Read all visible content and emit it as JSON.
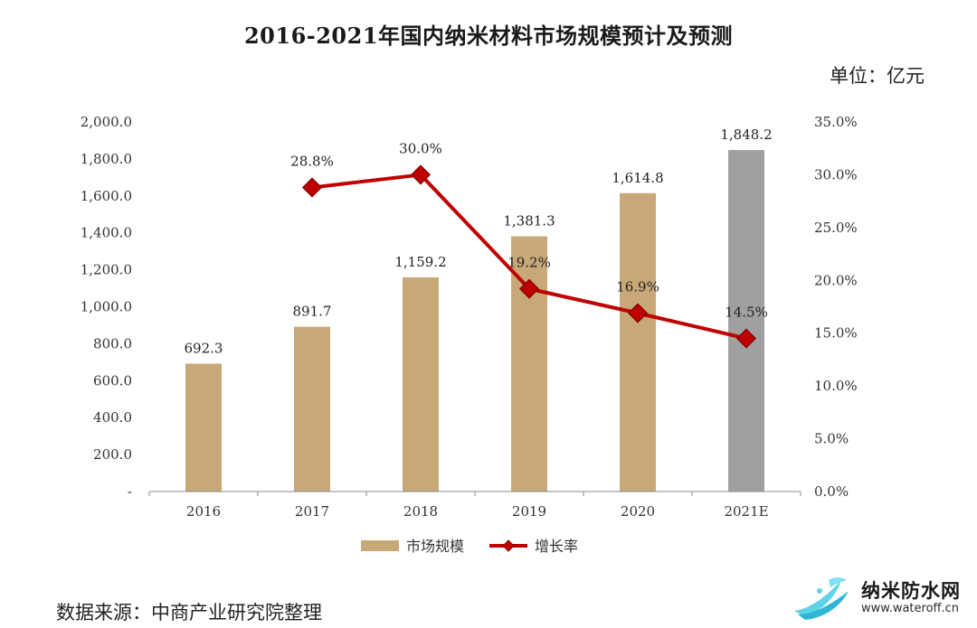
{
  "title": "2016-2021年国内纳米材料市场规模预计及预测",
  "unit_label": "单位：亿元",
  "source": "数据来源：中商产业研究院整理",
  "logo": {
    "name": "纳米防水网",
    "url": "www.wateroff.cn",
    "icon": "water-splash-icon"
  },
  "colors": {
    "bar": "#c8a878",
    "bar_forecast": "#a0a0a0",
    "line": "#c00000",
    "marker": "#c00000"
  },
  "chart_data": {
    "type": "bar",
    "categories": [
      "2016",
      "2017",
      "2018",
      "2019",
      "2020",
      "2021E"
    ],
    "series": [
      {
        "name": "市场规模",
        "type": "bar",
        "axis": "left",
        "values": [
          692.3,
          891.7,
          1159.2,
          1381.3,
          1614.8,
          1848.2
        ],
        "labels": [
          "692.3",
          "891.7",
          "1,159.2",
          "1,381.3",
          "1,614.8",
          "1,848.2"
        ]
      },
      {
        "name": "增长率",
        "type": "line",
        "axis": "right",
        "values": [
          null,
          28.8,
          30.0,
          19.2,
          16.9,
          14.5
        ],
        "labels": [
          "",
          "28.8%",
          "30.0%",
          "19.2%",
          "16.9%",
          "14.5%"
        ]
      }
    ],
    "y_left": {
      "range": [
        0,
        2000
      ],
      "ticks": [
        0,
        200,
        400,
        600,
        800,
        1000,
        1200,
        1400,
        1600,
        1800,
        2000
      ],
      "tick_labels": [
        "-",
        "200.0",
        "400.0",
        "600.0",
        "800.0",
        "1,000.0",
        "1,200.0",
        "1,400.0",
        "1,600.0",
        "1,800.0",
        "2,000.0"
      ]
    },
    "y_right": {
      "range": [
        0,
        35
      ],
      "ticks": [
        0,
        5,
        10,
        15,
        20,
        25,
        30,
        35
      ],
      "tick_labels": [
        "0.0%",
        "5.0%",
        "10.0%",
        "15.0%",
        "20.0%",
        "25.0%",
        "30.0%",
        "35.0%"
      ]
    },
    "grid": false,
    "legend_position": "bottom"
  }
}
